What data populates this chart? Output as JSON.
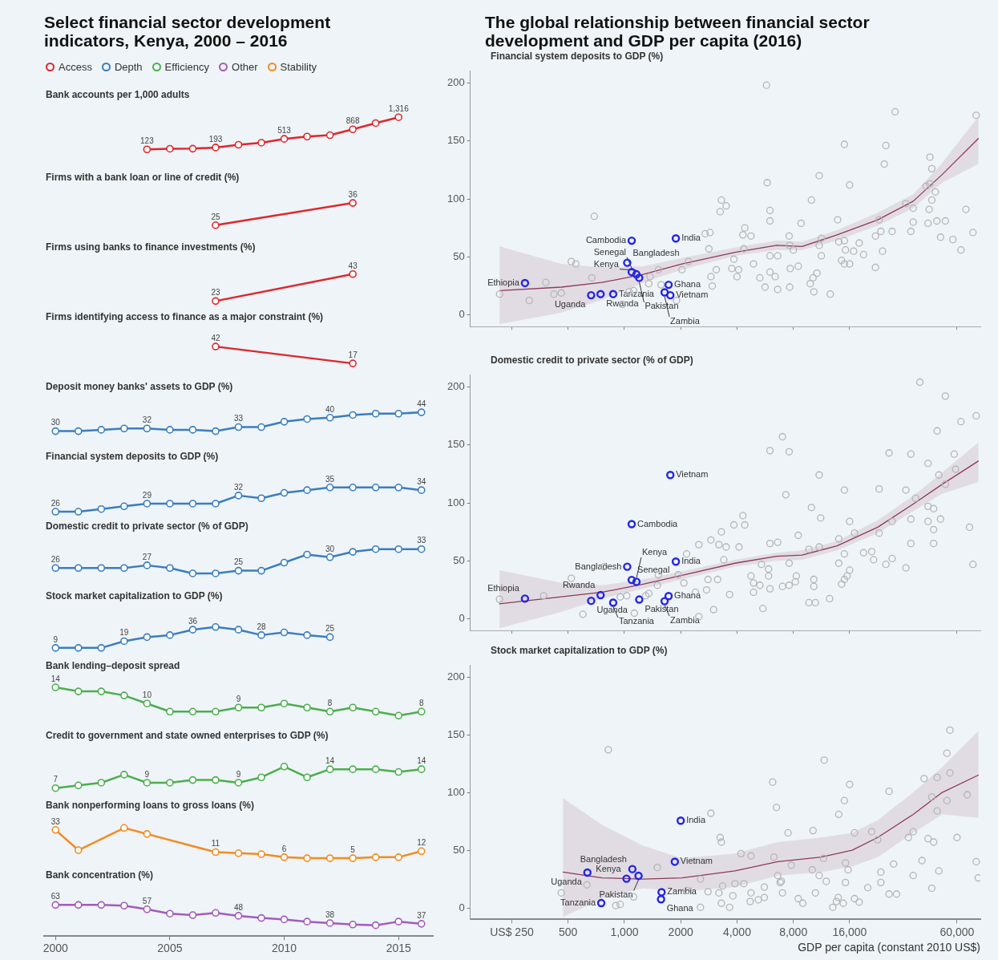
{
  "chart_data": [
    {
      "type": "line",
      "title": "Select financial sector development indicators, Kenya, 2000 – 2016",
      "subtitle": "Bank accounts per 1,000 adults",
      "legend": "top",
      "marker": "circle",
      "tick_labels": false,
      "categories": [
        null,
        null,
        null,
        null,
        null,
        null,
        null,
        null,
        null,
        null,
        null,
        null,
        null,
        null,
        null,
        null,
        null
      ],
      "series": [
        {
          "name": "Access",
          "color": "#e0262b",
          "values": [
            null,
            null,
            null,
            null,
            123,
            148,
            150,
            193,
            295,
            370,
            513,
            600,
            650,
            868,
            1100,
            1316,
            null
          ],
          "value_labels": [
            null,
            null,
            null,
            null,
            "123",
            null,
            null,
            "193",
            null,
            null,
            "513",
            null,
            null,
            "868",
            null,
            "1,316",
            null
          ]
        }
      ]
    },
    {
      "type": "line",
      "subtitle": "Firms with a bank loan or line of credit (%)",
      "marker": "circle",
      "tick_labels": false,
      "categories": [
        null,
        null,
        null,
        null,
        null,
        null,
        null,
        null,
        null,
        null,
        null,
        null,
        null,
        null,
        null,
        null,
        null
      ],
      "series": [
        {
          "color": "#e0262b",
          "values": [
            null,
            null,
            null,
            null,
            null,
            null,
            null,
            25,
            null,
            null,
            null,
            null,
            null,
            36,
            null,
            null,
            null
          ],
          "value_labels": [
            null,
            null,
            null,
            null,
            null,
            null,
            null,
            "25",
            null,
            null,
            null,
            null,
            null,
            "36",
            null,
            null,
            null
          ]
        }
      ]
    },
    {
      "type": "line",
      "subtitle": "Firms using banks to finance investments (%)",
      "marker": "circle",
      "tick_labels": false,
      "categories": [
        null,
        null,
        null,
        null,
        null,
        null,
        null,
        null,
        null,
        null,
        null,
        null,
        null,
        null,
        null,
        null,
        null
      ],
      "series": [
        {
          "color": "#e0262b",
          "values": [
            null,
            null,
            null,
            null,
            null,
            null,
            null,
            23,
            null,
            null,
            null,
            null,
            null,
            43,
            null,
            null,
            null
          ],
          "value_labels": [
            null,
            null,
            null,
            null,
            null,
            null,
            null,
            "23",
            null,
            null,
            null,
            null,
            null,
            "43",
            null,
            null,
            null
          ]
        }
      ]
    },
    {
      "type": "line",
      "subtitle": "Firms identifying access to finance as a major constraint (%)",
      "marker": "circle",
      "tick_labels": false,
      "categories": [
        null,
        null,
        null,
        null,
        null,
        null,
        null,
        null,
        null,
        null,
        null,
        null,
        null,
        null,
        null,
        null,
        null
      ],
      "series": [
        {
          "color": "#e0262b",
          "values": [
            null,
            null,
            null,
            null,
            null,
            null,
            null,
            42,
            null,
            null,
            null,
            null,
            null,
            17,
            null,
            null,
            null
          ],
          "value_labels": [
            null,
            null,
            null,
            null,
            null,
            null,
            null,
            "42",
            null,
            null,
            null,
            null,
            null,
            "17",
            null,
            null,
            null
          ]
        }
      ]
    },
    {
      "type": "line",
      "subtitle": "Deposit money banks' assets to GDP (%)",
      "marker": "circle",
      "tick_labels": false,
      "categories": [
        null,
        null,
        null,
        null,
        null,
        null,
        null,
        null,
        null,
        null,
        null,
        null,
        null,
        null,
        null,
        null,
        null
      ],
      "series": [
        {
          "name": "Depth",
          "color": "#3a7dc0",
          "values": [
            30,
            30,
            31,
            32,
            32,
            31,
            31,
            30,
            33,
            33,
            37,
            39,
            40,
            42,
            43,
            43,
            44
          ],
          "value_labels": [
            "30",
            null,
            null,
            null,
            "32",
            null,
            null,
            null,
            "33",
            null,
            null,
            null,
            "40",
            null,
            null,
            null,
            "44"
          ]
        }
      ]
    },
    {
      "type": "line",
      "subtitle": "Financial system deposits to GDP (%)",
      "marker": "circle",
      "tick_labels": false,
      "categories": [
        null,
        null,
        null,
        null,
        null,
        null,
        null,
        null,
        null,
        null,
        null,
        null,
        null,
        null,
        null,
        null,
        null
      ],
      "series": [
        {
          "color": "#3a7dc0",
          "values": [
            26,
            26,
            27,
            28,
            29,
            29,
            29,
            29,
            32,
            31,
            33,
            34,
            35,
            35,
            35,
            35,
            34
          ],
          "value_labels": [
            "26",
            null,
            null,
            null,
            "29",
            null,
            null,
            null,
            "32",
            null,
            null,
            null,
            "35",
            null,
            null,
            null,
            "34"
          ]
        }
      ]
    },
    {
      "type": "line",
      "subtitle": "Domestic credit to private sector (% of GDP)",
      "marker": "circle",
      "tick_labels": false,
      "categories": [
        null,
        null,
        null,
        null,
        null,
        null,
        null,
        null,
        null,
        null,
        null,
        null,
        null,
        null,
        null,
        null,
        null
      ],
      "series": [
        {
          "color": "#3a7dc0",
          "values": [
            26,
            26,
            26,
            26,
            27,
            26,
            24,
            24,
            25,
            25,
            28,
            31,
            30,
            32,
            33,
            33,
            33
          ],
          "value_labels": [
            "26",
            null,
            null,
            null,
            "27",
            null,
            null,
            null,
            "25",
            null,
            null,
            null,
            "30",
            null,
            null,
            null,
            "33"
          ]
        }
      ]
    },
    {
      "type": "line",
      "subtitle": "Stock market capitalization to GDP (%)",
      "marker": "circle",
      "tick_labels": false,
      "categories": [
        null,
        null,
        null,
        null,
        null,
        null,
        null,
        null,
        null,
        null,
        null,
        null,
        null,
        null,
        null,
        null,
        null
      ],
      "series": [
        {
          "color": "#3a7dc0",
          "values": [
            9,
            9,
            9,
            19,
            25,
            28,
            36,
            40,
            36,
            28,
            32,
            28,
            25,
            null,
            null,
            null,
            null
          ],
          "value_labels": [
            "9",
            null,
            null,
            "19",
            null,
            null,
            "36",
            null,
            null,
            "28",
            null,
            null,
            "25",
            null,
            null,
            null,
            null
          ]
        }
      ]
    },
    {
      "type": "line",
      "subtitle": "Bank lending–deposit spread",
      "marker": "circle",
      "tick_labels": false,
      "categories": [
        null,
        null,
        null,
        null,
        null,
        null,
        null,
        null,
        null,
        null,
        null,
        null,
        null,
        null,
        null,
        null,
        null
      ],
      "series": [
        {
          "name": "Efficiency",
          "color": "#4cae4c",
          "values": [
            14,
            13,
            13,
            12,
            10,
            8,
            8,
            8,
            9,
            9,
            10,
            9,
            8,
            9,
            8,
            7,
            8
          ],
          "value_labels": [
            "14",
            null,
            null,
            null,
            "10",
            null,
            null,
            null,
            "9",
            null,
            null,
            null,
            "8",
            null,
            null,
            null,
            "8"
          ]
        }
      ]
    },
    {
      "type": "line",
      "subtitle": "Credit to government and state owned enterprises to GDP (%)",
      "marker": "circle",
      "tick_labels": false,
      "categories": [
        null,
        null,
        null,
        null,
        null,
        null,
        null,
        null,
        null,
        null,
        null,
        null,
        null,
        null,
        null,
        null,
        null
      ],
      "series": [
        {
          "color": "#4cae4c",
          "values": [
            7,
            8,
            9,
            12,
            9,
            9,
            10,
            10,
            9,
            11,
            15,
            11,
            14,
            14,
            14,
            13,
            14
          ],
          "value_labels": [
            "7",
            null,
            null,
            null,
            "9",
            null,
            null,
            null,
            "9",
            null,
            null,
            null,
            "14",
            null,
            null,
            null,
            "14"
          ]
        }
      ]
    },
    {
      "type": "line",
      "subtitle": "Bank nonperforming loans to gross loans (%)",
      "marker": "circle",
      "tick_labels": false,
      "categories": [
        null,
        null,
        null,
        null,
        null,
        null,
        null,
        null,
        null,
        null,
        null,
        null,
        null,
        null,
        null,
        null,
        null
      ],
      "series": [
        {
          "name": "Stability",
          "color": "#f28c1f",
          "values": [
            33,
            13,
            null,
            35,
            29,
            null,
            null,
            11,
            10,
            9,
            6,
            5,
            5,
            5,
            6,
            6,
            12
          ],
          "value_labels": [
            "33",
            null,
            null,
            null,
            null,
            null,
            null,
            "11",
            null,
            null,
            "6",
            null,
            null,
            "5",
            null,
            null,
            "12"
          ]
        }
      ]
    },
    {
      "type": "line",
      "subtitle": "Bank concentration (%)",
      "marker": "circle",
      "tick_labels": "x",
      "categories": [
        "2000",
        null,
        null,
        null,
        null,
        "2005",
        null,
        null,
        null,
        null,
        "2010",
        null,
        null,
        null,
        null,
        "2015",
        null
      ],
      "series": [
        {
          "name": "Other",
          "color": "#a35bbd",
          "values": [
            63,
            63,
            63,
            62,
            57,
            51,
            49,
            52,
            48,
            45,
            43,
            40,
            38,
            36,
            35,
            40,
            37
          ],
          "value_labels": [
            "63",
            null,
            null,
            null,
            "57",
            null,
            null,
            null,
            "48",
            null,
            null,
            null,
            "38",
            null,
            null,
            null,
            "37"
          ]
        }
      ]
    },
    {
      "type": "scatter",
      "title": "The global relationship between financial sector development and GDP per capita (2016)",
      "subtitle": "Financial system deposits to GDP (%)",
      "marker": "circle",
      "log": "x",
      "tick_labels": "y",
      "xlim": [
        150,
        80000
      ],
      "xticks": [
        250,
        500,
        1000,
        2000,
        4000,
        8000,
        16000,
        60000
      ],
      "ylim": [
        -10,
        210
      ],
      "yticks": [
        0,
        50,
        100,
        150,
        200
      ],
      "series": [
        {
          "type": "scatter",
          "color": "#b5b5b5",
          "x": [
            5750,
            28000,
            76000,
            15000,
            25000,
            24500,
            43000,
            44000,
            11000,
            16000,
            5800,
            41000,
            43000,
            46000,
            44000,
            3300,
            3500,
            3250,
            10000,
            690,
            6000,
            67000,
            42600,
            32000,
            35000,
            23000,
            13800,
            6000,
            8800,
            4400,
            42000,
            46800,
            52000,
            35000,
            27000,
            34000,
            73000,
            22000,
            23500,
            2700,
            2870,
            7600,
            11300,
            57000,
            49000,
            4750,
            4300,
            2830,
            4350,
            14000,
            15000,
            18000,
            15200,
            16800,
            19000,
            24000,
            63000,
            11000,
            7650,
            8000,
            11300,
            6000,
            6600,
            14500,
            15000,
            16000,
            22000,
            8500,
            7700,
            6000,
            6400,
            5300,
            10700,
            10200,
            9850,
            10300,
            12600,
            6600,
            7650,
            5650,
            4900,
            3850,
            3750,
            4080,
            4000,
            3100,
            2900,
            2950,
            2030,
            2200,
            1520,
            1370,
            1350,
            1570,
            1900,
            1120,
            1060,
            975,
            670,
            520,
            550,
            380,
            310,
            215,
            460,
            420
          ],
          "values": [
            198,
            175,
            172,
            147,
            146,
            130,
            136,
            126,
            120,
            112,
            114,
            111,
            113,
            106,
            99,
            99,
            94,
            89,
            99,
            85,
            90,
            91,
            91,
            96,
            92,
            82,
            82,
            81,
            79,
            75,
            79,
            81,
            81,
            80,
            72,
            72,
            71,
            68,
            72,
            70,
            71,
            68,
            66,
            65,
            67,
            68,
            69,
            57,
            57,
            63,
            64,
            62,
            56,
            55,
            52,
            55,
            56,
            60,
            60,
            56,
            51,
            51,
            51,
            47,
            44,
            44,
            41,
            42,
            40,
            37,
            33,
            32,
            36,
            32,
            27,
            20,
            18,
            22,
            24,
            24,
            44,
            48,
            40,
            39,
            33,
            39,
            33,
            25,
            39,
            46,
            39,
            33,
            27,
            26,
            12.5,
            21,
            20,
            9,
            32,
            46,
            44,
            28,
            12.5,
            18,
            19,
            18
          ]
        },
        {
          "type": "scatter",
          "color": "#2323e6",
          "x": [
            294,
            664,
            746,
            871,
            1094,
            1035,
            1094,
            1160,
            1200,
            1884,
            1723,
            1760,
            1640
          ],
          "values": [
            27.5,
            17,
            18,
            18,
            64,
            45,
            37,
            35,
            32,
            66,
            26,
            17,
            19.5
          ]
        },
        {
          "type": "line",
          "marker": "none",
          "color": "#8e3a57",
          "x": [
            215,
            460,
            760,
            1260,
            2030,
            3900,
            6500,
            8900,
            13700,
            22600,
            35000,
            50000,
            78000
          ],
          "values": [
            21,
            24,
            28,
            35,
            44,
            54,
            60,
            59,
            69,
            82,
            98,
            121,
            152
          ],
          "lower": [
            -8,
            2,
            13,
            28,
            39,
            51,
            56,
            56,
            64,
            77,
            92,
            114,
            130
          ],
          "upper": [
            59,
            44,
            41,
            42,
            49,
            58,
            64,
            63,
            73,
            88,
            104,
            131,
            171
          ]
        }
      ],
      "annotations": [
        {
          "text": "Ethiopia",
          "x": 294,
          "y": 27.5
        },
        {
          "text": "Uganda",
          "x": 664,
          "y": 17
        },
        {
          "text": "Rwanda",
          "x": 746,
          "y": 18
        },
        {
          "text": "Tanzania",
          "x": 871,
          "y": 18
        },
        {
          "text": "Cambodia",
          "x": 1094,
          "y": 64
        },
        {
          "text": "Bangladesh",
          "x": 1035,
          "y": 45
        },
        {
          "text": "Senegal",
          "x": 1094,
          "y": 37
        },
        {
          "text": "Kenya",
          "x": 1160,
          "y": 35
        },
        {
          "text": "Pakistan",
          "x": 1200,
          "y": 32
        },
        {
          "text": "India",
          "x": 1884,
          "y": 66
        },
        {
          "text": "Ghana",
          "x": 1723,
          "y": 26
        },
        {
          "text": "Vietnam",
          "x": 1760,
          "y": 17
        },
        {
          "text": "Zambia",
          "x": 1640,
          "y": 19.5
        }
      ]
    },
    {
      "type": "scatter",
      "subtitle": "Domestic credit to private sector (% of GDP)",
      "marker": "circle",
      "log": "x",
      "tick_labels": "y",
      "xlim": [
        150,
        80000
      ],
      "xticks": [
        250,
        500,
        1000,
        2000,
        4000,
        8000,
        16000,
        60000
      ],
      "ylim": [
        -10,
        210
      ],
      "yticks": [
        0,
        50,
        100,
        150,
        200
      ],
      "series": [
        {
          "type": "scatter",
          "color": "#b5b5b5",
          "x": [
            38000,
            52000,
            76000,
            63000,
            7000,
            6000,
            7600,
            47000,
            26000,
            34000,
            58000,
            42000,
            59000,
            48000,
            52000,
            11000,
            15000,
            23000,
            32000,
            36000,
            7300,
            10000,
            42000,
            45000,
            11200,
            4300,
            3850,
            4400,
            16000,
            27000,
            34000,
            42000,
            49000,
            70000,
            45000,
            3300,
            17000,
            23000,
            8500,
            2900,
            6000,
            6600,
            34000,
            45000,
            3200,
            3500,
            2500,
            9700,
            11000,
            4100,
            19000,
            21000,
            15000,
            14000,
            2150,
            21500,
            27000,
            25000,
            32000,
            73000,
            14000,
            7600,
            5400,
            3400,
            5900,
            16000,
            15500,
            15000,
            14500,
            10300,
            10300,
            8300,
            8200,
            7600,
            7000,
            5900,
            4750,
            4900,
            5300,
            6000,
            4900,
            3650,
            2800,
            3150,
            2750,
            2400,
            12500,
            9700,
            10500,
            5500,
            3000,
            2500,
            2080,
            1940,
            1520,
            1500,
            1350,
            1300,
            1130,
            780,
            520,
            370,
            215,
            600,
            950,
            1030
          ],
          "values": [
            204,
            192,
            175,
            170,
            157,
            145,
            144,
            162,
            143,
            142,
            142,
            134,
            129,
            124,
            116,
            124,
            111,
            112,
            111,
            104,
            107,
            96,
            97,
            95,
            87,
            89,
            81,
            81,
            84,
            84,
            86,
            84,
            86,
            79,
            77,
            75,
            74,
            74,
            72,
            68,
            65,
            66,
            65,
            65,
            64,
            62,
            64,
            60,
            62,
            62,
            57,
            58,
            56,
            69,
            56,
            51,
            52,
            47,
            44,
            47,
            48,
            48,
            47,
            51,
            43,
            42,
            37,
            34,
            30,
            34,
            28,
            37,
            32,
            29,
            28,
            37,
            37,
            31,
            29,
            26,
            23,
            21,
            34,
            34,
            25,
            23,
            17.5,
            14,
            14,
            9,
            8,
            2,
            31,
            38,
            38,
            29,
            22,
            20,
            5,
            45,
            35,
            20,
            17,
            4,
            19,
            20
          ]
        },
        {
          "type": "scatter",
          "color": "#2323e6",
          "x": [
            294,
            664,
            746,
            871,
            1094,
            1035,
            1094,
            1160,
            1200,
            1884,
            1760,
            1723,
            1640
          ],
          "values": [
            17.5,
            15.6,
            20.5,
            14,
            81.7,
            45,
            33.6,
            32,
            16.7,
            49.4,
            124,
            19.7,
            15.3
          ]
        },
        {
          "type": "line",
          "marker": "none",
          "color": "#8e3a57",
          "x": [
            215,
            460,
            760,
            1260,
            2030,
            3900,
            6500,
            8900,
            13700,
            22600,
            35000,
            50000,
            78000
          ],
          "values": [
            13,
            19,
            23,
            30,
            37.5,
            48,
            54,
            55,
            63,
            79,
            99,
            116,
            136
          ],
          "lower": [
            -8,
            6,
            17.5,
            26,
            34,
            45,
            50,
            51,
            59,
            74,
            93,
            108,
            118
          ],
          "upper": [
            42,
            31,
            29,
            34,
            41,
            51,
            57,
            59,
            67,
            85,
            106,
            126,
            152
          ]
        }
      ],
      "annotations": [
        {
          "text": "Ethiopia",
          "x": 294,
          "y": 17.5
        },
        {
          "text": "Uganda",
          "x": 664,
          "y": 15.6
        },
        {
          "text": "Rwanda",
          "x": 746,
          "y": 20.5
        },
        {
          "text": "Tanzania",
          "x": 871,
          "y": 14
        },
        {
          "text": "Cambodia",
          "x": 1094,
          "y": 81.7
        },
        {
          "text": "Bangladesh",
          "x": 1035,
          "y": 45
        },
        {
          "text": "Senegal",
          "x": 1094,
          "y": 33.6
        },
        {
          "text": "Kenya",
          "x": 1160,
          "y": 32
        },
        {
          "text": "Pakistan",
          "x": 1200,
          "y": 16.7
        },
        {
          "text": "India",
          "x": 1884,
          "y": 49.4
        },
        {
          "text": "Vietnam",
          "x": 1760,
          "y": 124
        },
        {
          "text": "Ghana",
          "x": 1723,
          "y": 19.7
        },
        {
          "text": "Zambia",
          "x": 1640,
          "y": 15.3
        }
      ]
    },
    {
      "type": "scatter",
      "subtitle": "Stock market capitalization to GDP (%)",
      "xlabel": "GDP per capita (constant 2010 US$)",
      "marker": "circle",
      "log": "x",
      "xlim": [
        150,
        80000
      ],
      "xticks": [
        {
          "value": 250,
          "label": "US$ 250"
        },
        500,
        {
          "value": 1000,
          "label": "1,000"
        },
        2000,
        {
          "value": 4000,
          "label": "4,000"
        },
        {
          "value": 8000,
          "label": "8,000"
        },
        {
          "value": 16000,
          "label": "16,000"
        },
        {
          "value": 60000,
          "label": "60,000"
        }
      ],
      "ylim": [
        -10,
        210
      ],
      "yticks": [
        0,
        50,
        100,
        150,
        200
      ],
      "series": [
        {
          "type": "scatter",
          "color": "#b5b5b5",
          "x": [
            55000,
            53000,
            820,
            11700,
            6200,
            16000,
            26000,
            40000,
            47000,
            55000,
            15000,
            6500,
            44000,
            53000,
            68000,
            14000,
            47000,
            2900,
            7500,
            10200,
            17000,
            21000,
            35000,
            33000,
            42000,
            45000,
            60000,
            22600,
            3250,
            3300,
            4200,
            4750,
            6300,
            11600,
            27500,
            39000,
            76000,
            15200,
            7800,
            10100,
            15700,
            48000,
            23500,
            35000,
            11000,
            6600,
            6900,
            12000,
            78000,
            23500,
            15200,
            20000,
            44000,
            26000,
            28500,
            10500,
            7000,
            4750,
            5600,
            4350,
            3900,
            3350,
            3200,
            3800,
            3650,
            3300,
            4700,
            5200,
            5600,
            8500,
            9000,
            13000,
            13600,
            14800,
            13900,
            17000,
            18000,
            2800,
            2550,
            2550,
            2150,
            1500,
            1120,
            950,
            900,
            630,
            460,
            6800
          ],
          "values": [
            154,
            134,
            137,
            128,
            109,
            107,
            101,
            112,
            113,
            117,
            93,
            87,
            96,
            93,
            98,
            81,
            84,
            82,
            65,
            67,
            65,
            66,
            66,
            61,
            60,
            57,
            61,
            59,
            61,
            57,
            47,
            45,
            44,
            43,
            38,
            41,
            40,
            39,
            37,
            33,
            33,
            32,
            31,
            28,
            28,
            28,
            23,
            23,
            26,
            22,
            22,
            17.5,
            17,
            12,
            12,
            13,
            13,
            13,
            18,
            21,
            21,
            19,
            13,
            10.5,
            0.5,
            4,
            5.5,
            7,
            9,
            8,
            4,
            0.5,
            5.5,
            4,
            9,
            8,
            5,
            14,
            0.5,
            25,
            15,
            35,
            9.5,
            3,
            2,
            20,
            13,
            22
          ]
        },
        {
          "type": "scatter",
          "color": "#2323e6",
          "x": [
            2000,
            1860,
            1103,
            1190,
            1026,
            634,
            1580,
            1570,
            752
          ],
          "values": [
            75.6,
            40,
            33.6,
            27.8,
            25.3,
            30.6,
            13.6,
            7.5,
            4.2
          ]
        },
        {
          "type": "line",
          "marker": "none",
          "color": "#8e3a57",
          "x": [
            470,
            760,
            1250,
            2030,
            3900,
            6600,
            11300,
            16500,
            22600,
            35000,
            50000,
            78000
          ],
          "values": [
            31,
            26,
            25,
            26,
            32,
            40,
            44,
            50,
            61,
            81,
            100,
            115
          ],
          "lower": [
            -8,
            8,
            17,
            14,
            18,
            28,
            31,
            36,
            44,
            65,
            81,
            78
          ],
          "upper": [
            95,
            72,
            54,
            43,
            47,
            57,
            61,
            65,
            76,
            100,
            122,
            153
          ]
        }
      ],
      "annotations": [
        {
          "text": "India",
          "x": 2000,
          "y": 75.6
        },
        {
          "text": "Vietnam",
          "x": 1860,
          "y": 40
        },
        {
          "text": "Bangladesh",
          "x": 1103,
          "y": 33.6
        },
        {
          "text": "Pakistan",
          "x": 1190,
          "y": 27.8
        },
        {
          "text": "Kenya",
          "x": 1026,
          "y": 25.3
        },
        {
          "text": "Uganda",
          "x": 634,
          "y": 30.6
        },
        {
          "text": "Zambia",
          "x": 1580,
          "y": 13.6
        },
        {
          "text": "Ghana",
          "x": 1570,
          "y": 7.5
        },
        {
          "text": "Tanzania",
          "x": 752,
          "y": 4.2
        }
      ]
    }
  ]
}
